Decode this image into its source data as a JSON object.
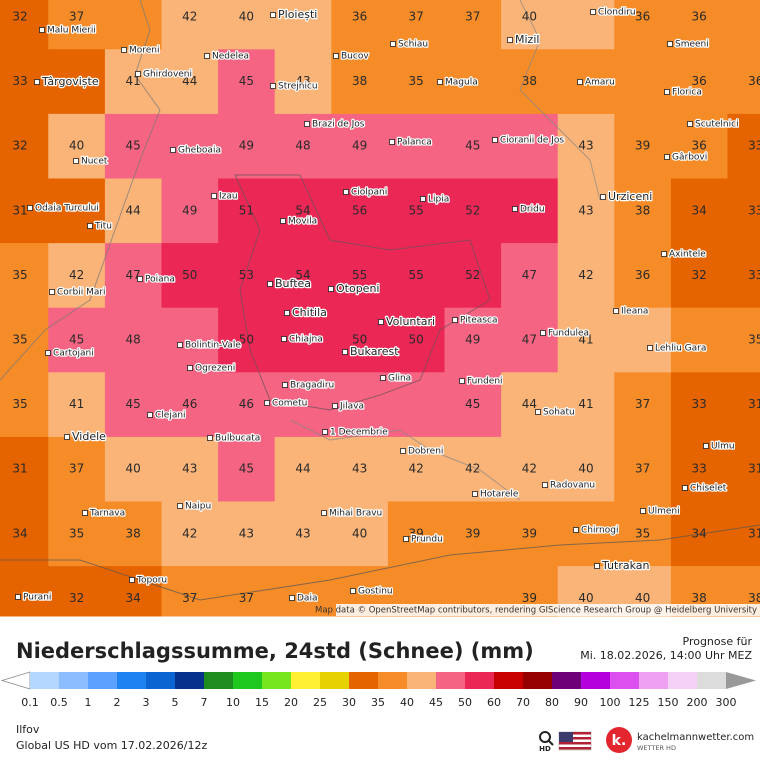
{
  "map": {
    "grid": [
      [
        32,
        37,
        null,
        42,
        40,
        null,
        36,
        37,
        37,
        40,
        null,
        36,
        36,
        null
      ],
      [
        33,
        null,
        41,
        44,
        45,
        43,
        38,
        35,
        null,
        38,
        null,
        null,
        36,
        36
      ],
      [
        32,
        40,
        45,
        null,
        49,
        48,
        49,
        null,
        45,
        null,
        43,
        39,
        36,
        33
      ],
      [
        31,
        null,
        44,
        49,
        51,
        54,
        56,
        55,
        52,
        null,
        43,
        38,
        34,
        33
      ],
      [
        35,
        42,
        47,
        50,
        53,
        54,
        55,
        55,
        52,
        47,
        42,
        36,
        32,
        33
      ],
      [
        35,
        45,
        48,
        null,
        50,
        null,
        50,
        50,
        49,
        47,
        41,
        null,
        null,
        35
      ],
      [
        35,
        41,
        45,
        46,
        46,
        null,
        null,
        null,
        45,
        44,
        41,
        37,
        33,
        31
      ],
      [
        31,
        37,
        40,
        43,
        45,
        44,
        43,
        42,
        42,
        42,
        40,
        37,
        33,
        31
      ],
      [
        34,
        35,
        38,
        42,
        43,
        43,
        40,
        39,
        39,
        39,
        null,
        35,
        34,
        31
      ],
      [
        null,
        32,
        34,
        37,
        37,
        null,
        null,
        null,
        null,
        39,
        40,
        40,
        38,
        38
      ]
    ],
    "cities": [
      "Malu Mierii",
      "Ploiești",
      "Clondiru",
      "Moreni",
      "Nedelea",
      "Bucov",
      "Schiau",
      "Mizil",
      "Smeeni",
      "Târgoviște",
      "Ghirdoveni",
      "Strejnicu",
      "Magula",
      "Amaru",
      "Florica",
      "Brazi de Jos",
      "Scutelnici",
      "Palanca",
      "Cioranii de Jos",
      "Gheboaia",
      "Nucet",
      "Gârbovi",
      "Ciolpani",
      "Izau",
      "Lipia",
      "Urziceni",
      "Odaia Turcului",
      "Dridu",
      "Movila",
      "Titu",
      "Axintele",
      "Poiana",
      "Buftea",
      "Otopeni",
      "Corbii Mari",
      "Ileana",
      "Chitila",
      "Piteasca",
      "Voluntari",
      "Fundulea",
      "Bolintin-Vale",
      "Chiajna",
      "Lehliu Gara",
      "Cartojani",
      "Bukarest",
      "Ogrezeni",
      "Glina",
      "Fundeni",
      "Bragadiru",
      "Cometu",
      "Jilava",
      "Clejani",
      "Sohatu",
      "1 Decembrie",
      "Videle",
      "Bulbucata",
      "Ulmu",
      "Dobreni",
      "Radovanu",
      "Chiselet",
      "Hotarele",
      "Naipu",
      "Ulmeni",
      "Tarnava",
      "Mihai Bravu",
      "Chirnogi",
      "Prundu",
      "Toporu",
      "Tutrakan",
      "Gostinu",
      "Purani",
      "Daia"
    ],
    "attribution": "Map data © OpenStreetMap contributors, rendering GIScience Research Group @ Heidelberg University"
  },
  "header": {
    "title": "Niederschlagssumme, 24std (Schnee) (mm)",
    "forecast_label": "Prognose für",
    "forecast_time": "Mi. 18.02.2026, 14:00 Uhr MEZ"
  },
  "legend": {
    "labels": [
      0.1,
      0.5,
      1,
      2,
      3,
      5,
      7,
      10,
      15,
      20,
      25,
      30,
      35,
      40,
      45,
      50,
      60,
      70,
      80,
      90,
      100,
      125,
      150,
      200,
      300
    ],
    "colors": [
      "#b4d7ff",
      "#8cbeff",
      "#5aa0ff",
      "#1e82f0",
      "#0a64d2",
      "#06328c",
      "#1e8c1e",
      "#1ec81e",
      "#78e61e",
      "#fff032",
      "#e6d200",
      "#e66400",
      "#f58c28",
      "#fab478",
      "#f56482",
      "#eb2855",
      "#c80000",
      "#960000",
      "#6e0078",
      "#b400dc",
      "#dc50f0",
      "#f0a0f0",
      "#f5d2f5",
      "#dcdcdc"
    ]
  },
  "footer": {
    "region": "Ilfov",
    "model": "Global US HD vom  17.02.2026/12z",
    "hd": "HD",
    "logo": "kachelmannwetter.com",
    "logo_sub": "WETTER HD"
  }
}
